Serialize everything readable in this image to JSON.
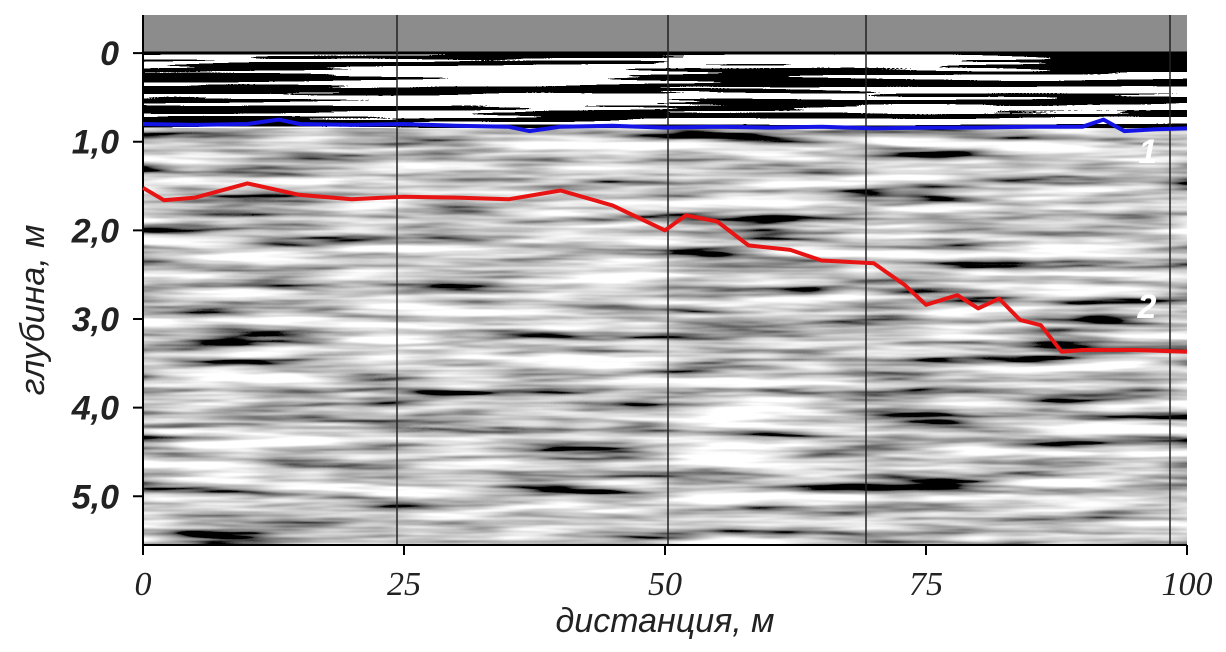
{
  "chart_data": {
    "type": "line",
    "x_label": "дистанция, м",
    "y_label": "глубина, м",
    "xlim": [
      0,
      100
    ],
    "xticks": [
      0,
      25,
      50,
      75,
      100
    ],
    "ylim": [
      5.55,
      -0.43
    ],
    "yticks": [
      0,
      {
        "value": 1,
        "label": "1,0"
      },
      {
        "value": 2,
        "label": "2,0"
      },
      {
        "value": 3,
        "label": "3,0"
      },
      {
        "value": 4,
        "label": "4,0"
      },
      {
        "value": 5,
        "label": "5,0"
      }
    ],
    "annotations": [
      "1",
      "2"
    ],
    "series": [
      {
        "color": "#1414e6",
        "x": [
          0,
          5,
          10,
          13,
          15,
          20,
          25,
          30,
          35,
          37,
          40,
          45,
          50,
          55,
          60,
          65,
          70,
          75,
          80,
          85,
          90,
          92,
          94,
          97,
          100
        ],
        "values": [
          0.8,
          0.81,
          0.8,
          0.75,
          0.8,
          0.81,
          0.8,
          0.82,
          0.83,
          0.88,
          0.83,
          0.82,
          0.84,
          0.83,
          0.84,
          0.83,
          0.85,
          0.84,
          0.84,
          0.83,
          0.83,
          0.75,
          0.88,
          0.86,
          0.85
        ]
      },
      {
        "color": "#e81414",
        "x": [
          0,
          2,
          5,
          10,
          15,
          20,
          25,
          30,
          35,
          40,
          45,
          50,
          52,
          55,
          58,
          62,
          65,
          70,
          73,
          75,
          78,
          80,
          82,
          84,
          86,
          88,
          90,
          95,
          100
        ],
        "values": [
          1.52,
          1.66,
          1.63,
          1.47,
          1.6,
          1.65,
          1.62,
          1.63,
          1.65,
          1.55,
          1.72,
          2.0,
          1.83,
          1.9,
          2.17,
          2.22,
          2.34,
          2.37,
          2.62,
          2.84,
          2.73,
          2.88,
          2.77,
          3.01,
          3.07,
          3.37,
          3.35,
          3.35,
          3.37
        ]
      }
    ]
  }
}
